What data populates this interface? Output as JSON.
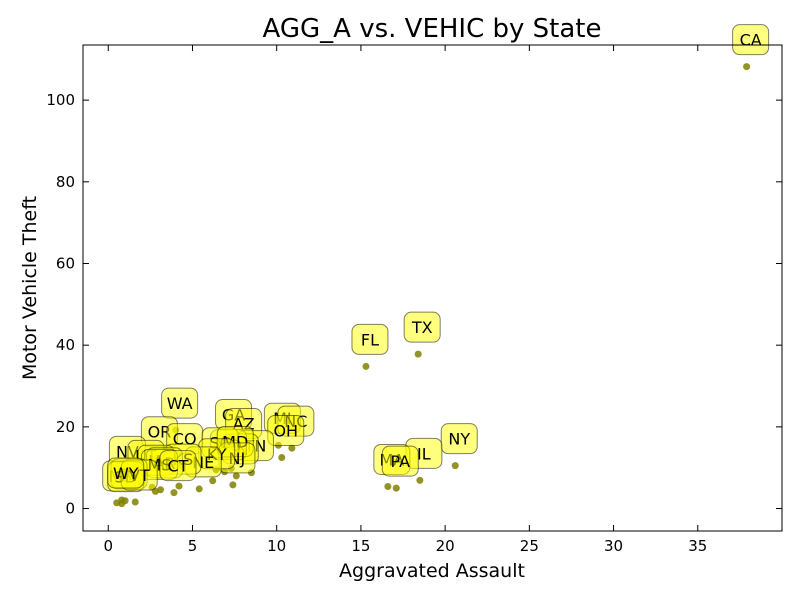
{
  "chart_data": {
    "type": "scatter",
    "title": "AGG_A vs. VEHIC by State",
    "xlabel": "Aggravated Assault",
    "ylabel": "Motor Vehicle Theft",
    "xlim": [
      -1.5,
      40
    ],
    "ylim": [
      -5.5,
      113.5
    ],
    "xticks": [
      0,
      5,
      10,
      15,
      20,
      25,
      30,
      35
    ],
    "yticks": [
      0,
      20,
      40,
      60,
      80,
      100
    ],
    "grid": false,
    "marker_color": "#808000",
    "label_box_color": "#ffff00",
    "points": [
      {
        "label": "CA",
        "x": 37.9,
        "y": 108.2
      },
      {
        "label": "TX",
        "x": 18.4,
        "y": 37.8
      },
      {
        "label": "FL",
        "x": 15.3,
        "y": 34.8
      },
      {
        "label": "NY",
        "x": 20.6,
        "y": 10.5
      },
      {
        "label": "IL",
        "x": 18.5,
        "y": 6.9
      },
      {
        "label": "MA",
        "x": 16.6,
        "y": 5.4
      },
      {
        "label": "PA",
        "x": 17.1,
        "y": 5.0
      },
      {
        "label": "WA",
        "x": 4.0,
        "y": 19.2
      },
      {
        "label": "GA",
        "x": 7.2,
        "y": 16.4
      },
      {
        "label": "AZ",
        "x": 7.8,
        "y": 14.2
      },
      {
        "label": "MI",
        "x": 10.1,
        "y": 15.5
      },
      {
        "label": "NC",
        "x": 10.9,
        "y": 14.8
      },
      {
        "label": "OH",
        "x": 10.3,
        "y": 12.5
      },
      {
        "label": "OR",
        "x": 2.8,
        "y": 12.2
      },
      {
        "label": "CO",
        "x": 4.3,
        "y": 10.5
      },
      {
        "label": "TN",
        "x": 8.5,
        "y": 8.8
      },
      {
        "label": "IN",
        "x": 7.6,
        "y": 8.0
      },
      {
        "label": "MO",
        "x": 6.9,
        "y": 9.0
      },
      {
        "label": "SC",
        "x": 6.4,
        "y": 9.5
      },
      {
        "label": "MD",
        "x": 7.3,
        "y": 9.8
      },
      {
        "label": "NJ",
        "x": 7.4,
        "y": 5.8
      },
      {
        "label": "KY",
        "x": 6.2,
        "y": 6.8
      },
      {
        "label": "NE",
        "x": 5.4,
        "y": 4.8
      },
      {
        "label": "KS",
        "x": 4.2,
        "y": 5.5
      },
      {
        "label": "NV",
        "x": 0.9,
        "y": 7.4
      },
      {
        "label": "UT",
        "x": 2.0,
        "y": 6.4
      },
      {
        "label": "IA",
        "x": 2.6,
        "y": 5.2
      },
      {
        "label": "AR",
        "x": 3.1,
        "y": 4.6
      },
      {
        "label": "MS",
        "x": 2.8,
        "y": 4.2
      },
      {
        "label": "CT",
        "x": 3.9,
        "y": 3.9
      },
      {
        "label": "ME",
        "x": 0.5,
        "y": 1.4
      },
      {
        "label": "RI",
        "x": 1.0,
        "y": 1.9
      },
      {
        "label": "SD",
        "x": 0.8,
        "y": 1.2
      },
      {
        "label": "VT",
        "x": 1.6,
        "y": 1.6
      },
      {
        "label": "WY",
        "x": 0.8,
        "y": 2.1
      }
    ]
  }
}
